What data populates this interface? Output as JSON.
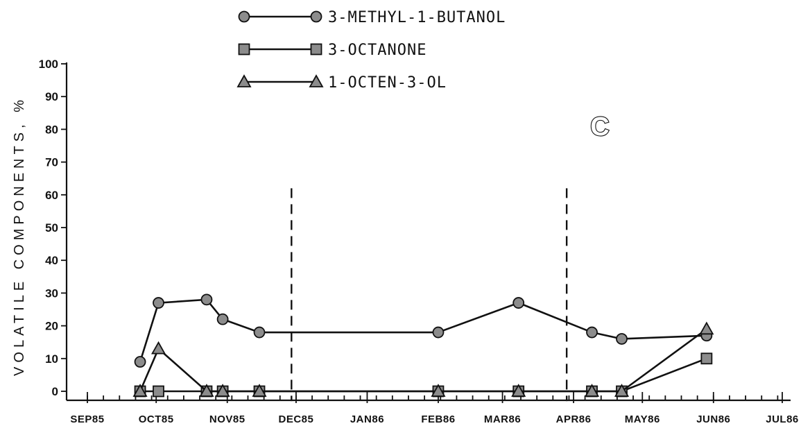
{
  "chart_data": {
    "type": "line",
    "panel_label": "C",
    "ylabel": "VOLATILE COMPONENTS, %",
    "xlabel": "",
    "ylim": [
      0,
      100
    ],
    "yticks": [
      0,
      10,
      20,
      30,
      40,
      50,
      60,
      70,
      80,
      90,
      100
    ],
    "x_tick_labels": [
      "SEP85",
      "OCT85",
      "NOV85",
      "DEC85",
      "JAN86",
      "FEB86",
      "MAR86",
      "APR86",
      "MAY86",
      "JUN86",
      "JUL86"
    ],
    "xlim": [
      "1985-09-01",
      "1986-07-01"
    ],
    "grid": false,
    "legend_position": "top-center",
    "vertical_markers": [
      "1985-11-29",
      "1986-03-29"
    ],
    "series": [
      {
        "name": "3-METHYL-1-BUTANOL",
        "marker": "circle",
        "x": [
          "1985-09-24",
          "1985-10-02",
          "1985-10-23",
          "1985-10-30",
          "1985-11-15",
          "1986-02-01",
          "1986-03-08",
          "1986-04-09",
          "1986-04-22",
          "1986-05-29"
        ],
        "y": [
          9,
          27,
          28,
          22,
          18,
          18,
          27,
          18,
          16,
          17
        ]
      },
      {
        "name": "3-OCTANONE",
        "marker": "square",
        "x": [
          "1985-09-24",
          "1985-10-02",
          "1985-10-23",
          "1985-10-30",
          "1985-11-15",
          "1986-02-01",
          "1986-03-08",
          "1986-04-09",
          "1986-04-22",
          "1986-05-29"
        ],
        "y": [
          0,
          0,
          0,
          0,
          0,
          0,
          0,
          0,
          0,
          10
        ]
      },
      {
        "name": "1-OCTEN-3-OL",
        "marker": "triangle",
        "x": [
          "1985-09-24",
          "1985-10-02",
          "1985-10-23",
          "1985-10-30",
          "1985-11-15",
          "1986-02-01",
          "1986-03-08",
          "1986-04-09",
          "1986-04-22",
          "1986-05-29"
        ],
        "y": [
          0,
          13,
          0,
          0,
          0,
          0,
          0,
          0,
          0,
          19
        ]
      }
    ]
  }
}
